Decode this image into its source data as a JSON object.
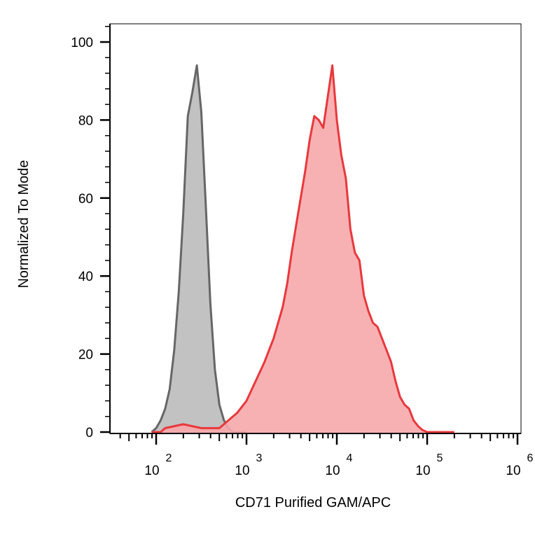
{
  "chart_data": {
    "type": "area",
    "xlabel": "CD71 Purified GAM/APC",
    "ylabel": "Normalized To Mode",
    "x_scale": "log",
    "xlim": [
      2,
      6
    ],
    "ylim": [
      0,
      105
    ],
    "y_ticks": [
      "0",
      "20",
      "40",
      "60",
      "80",
      "100"
    ],
    "x_ticks": [
      {
        "base": "10",
        "exp": "2"
      },
      {
        "base": "10",
        "exp": "3"
      },
      {
        "base": "10",
        "exp": "4"
      },
      {
        "base": "10",
        "exp": "5"
      },
      {
        "base": "10",
        "exp": "6"
      }
    ],
    "grid": false,
    "series": [
      {
        "color": "#666666",
        "fill": "#c2c2c2",
        "x_unit": "log10 intensity",
        "x": [
          1.95,
          2.0,
          2.05,
          2.1,
          2.15,
          2.2,
          2.25,
          2.3,
          2.35,
          2.4,
          2.45,
          2.5,
          2.55,
          2.6,
          2.65,
          2.7,
          2.75,
          2.8,
          2.85,
          2.9,
          2.95,
          3.0
        ],
        "y": [
          0,
          1,
          3,
          6,
          11,
          21,
          36,
          56,
          81,
          87,
          94,
          82,
          58,
          33,
          16,
          7,
          3,
          1,
          0,
          0,
          0,
          0
        ]
      },
      {
        "color": "#e8383d",
        "fill": "#f7a9ab",
        "x_unit": "log10 intensity",
        "x": [
          1.95,
          2.05,
          2.1,
          2.2,
          2.3,
          2.4,
          2.5,
          2.6,
          2.7,
          2.8,
          2.9,
          3.0,
          3.1,
          3.2,
          3.3,
          3.4,
          3.45,
          3.5,
          3.55,
          3.6,
          3.65,
          3.7,
          3.75,
          3.8,
          3.85,
          3.9,
          3.95,
          4.0,
          4.05,
          4.1,
          4.15,
          4.2,
          4.25,
          4.3,
          4.35,
          4.4,
          4.45,
          4.5,
          4.55,
          4.6,
          4.65,
          4.7,
          4.75,
          4.8,
          4.85,
          4.9,
          4.95,
          5.0,
          5.05,
          5.1,
          5.15,
          5.2,
          5.3
        ],
        "y": [
          0,
          0,
          1,
          1.5,
          2,
          1.5,
          1,
          1,
          1,
          3,
          5,
          8,
          13,
          18,
          24,
          32,
          38,
          46,
          53,
          60,
          67,
          75,
          81,
          80,
          78,
          86,
          94,
          80,
          71,
          65,
          52,
          46,
          44,
          35,
          31,
          28,
          27,
          24,
          21,
          18,
          13,
          9,
          7,
          6,
          3,
          1.5,
          0.5,
          0,
          0,
          0,
          0,
          0,
          0
        ]
      }
    ]
  }
}
